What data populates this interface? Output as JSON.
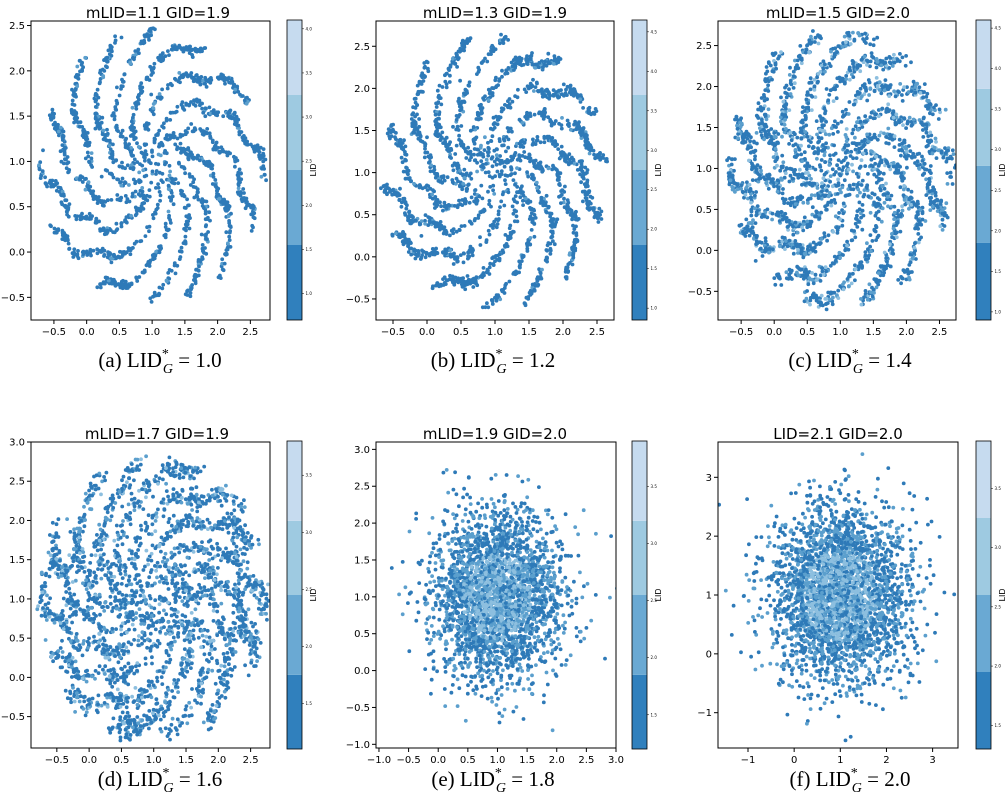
{
  "chart_data": [
    {
      "type": "scatter",
      "title": "mLID=1.1 GID=1.9",
      "caption": {
        "prefix": "(a) LID",
        "sup": "*",
        "sub": "G",
        "rest": " = 1.0"
      },
      "xlim": [
        -0.85,
        2.8
      ],
      "ylim": [
        -0.75,
        2.55
      ],
      "xticks": [
        "-0.5",
        "0.0",
        "0.5",
        "1.0",
        "1.5",
        "2.0",
        "2.5"
      ],
      "yticks": [
        "-0.5",
        "0.0",
        "0.5",
        "1.0",
        "1.5",
        "2.0",
        "2.5"
      ],
      "ytick_values": [
        -0.5,
        0,
        0.5,
        1,
        1.5,
        2,
        2.5
      ],
      "xtick_values": [
        -0.5,
        0,
        0.5,
        1,
        1.5,
        2,
        2.5
      ],
      "pattern": "stripes",
      "point_count": 1700,
      "noise": 0.02,
      "center": [
        1.0,
        0.95
      ],
      "colorbar": {
        "label": "LID",
        "ticks": [
          "1.0",
          "1.5",
          "2.0",
          "2.5",
          "3.0",
          "3.5",
          "4.0"
        ],
        "tick_values": [
          1.0,
          1.5,
          2.0,
          2.5,
          3.0,
          3.5,
          4.0
        ],
        "range": [
          0.7,
          4.1
        ],
        "bounds": [
          0.7,
          1.55,
          2.4,
          3.25,
          4.1
        ]
      }
    },
    {
      "type": "scatter",
      "title": "mLID=1.3 GID=1.9",
      "caption": {
        "prefix": "(b) LID",
        "sup": "*",
        "sub": "G",
        "rest": " = 1.2"
      },
      "xlim": [
        -0.75,
        2.75
      ],
      "ylim": [
        -0.75,
        2.8
      ],
      "xticks": [
        "-0.5",
        "0.0",
        "0.5",
        "1.0",
        "1.5",
        "2.0",
        "2.5"
      ],
      "xtick_values": [
        -0.5,
        0,
        0.5,
        1,
        1.5,
        2,
        2.5
      ],
      "yticks": [
        "-0.5",
        "0.0",
        "0.5",
        "1.0",
        "1.5",
        "2.0",
        "2.5"
      ],
      "ytick_values": [
        -0.5,
        0,
        0.5,
        1,
        1.5,
        2,
        2.5
      ],
      "pattern": "stripes",
      "point_count": 1900,
      "noise": 0.025,
      "center": [
        1.0,
        1.0
      ],
      "colorbar": {
        "label": "LID",
        "ticks": [
          "1.0",
          "1.5",
          "2.0",
          "2.5",
          "3.0",
          "3.5",
          "4.0",
          "4.5"
        ],
        "tick_values": [
          1.0,
          1.5,
          2.0,
          2.5,
          3.0,
          3.5,
          4.0,
          4.5
        ],
        "range": [
          0.85,
          4.65
        ],
        "bounds": [
          0.85,
          1.8,
          2.75,
          3.7,
          4.65
        ]
      }
    },
    {
      "type": "scatter",
      "title": "mLID=1.5 GID=2.0",
      "caption": {
        "prefix": "(c) LID",
        "sup": "*",
        "sub": "G",
        "rest": " = 1.4"
      },
      "xlim": [
        -0.85,
        2.75
      ],
      "ylim": [
        -0.85,
        2.8
      ],
      "xticks": [
        "-0.5",
        "0.0",
        "0.5",
        "1.0",
        "1.5",
        "2.0",
        "2.5"
      ],
      "xtick_values": [
        -0.5,
        0,
        0.5,
        1,
        1.5,
        2,
        2.5
      ],
      "yticks": [
        "-0.5",
        "0.0",
        "0.5",
        "1.0",
        "1.5",
        "2.0",
        "2.5"
      ],
      "ytick_values": [
        -0.5,
        0,
        0.5,
        1,
        1.5,
        2,
        2.5
      ],
      "pattern": "mixed",
      "point_count": 2300,
      "noise": 0.035,
      "center": [
        1.0,
        1.0
      ],
      "colorbar": {
        "label": "LID",
        "ticks": [
          "1.0",
          "1.5",
          "2.0",
          "2.5",
          "3.0",
          "3.5",
          "4.0",
          "4.5"
        ],
        "tick_values": [
          1.0,
          1.5,
          2.0,
          2.5,
          3.0,
          3.5,
          4.0,
          4.5
        ],
        "range": [
          0.9,
          4.6
        ],
        "bounds": [
          0.9,
          1.85,
          2.8,
          3.75,
          4.6
        ]
      }
    },
    {
      "type": "scatter",
      "title": "mLID=1.7 GID=1.9",
      "caption": {
        "prefix": "(d) LID",
        "sup": "*",
        "sub": "G",
        "rest": " = 1.6"
      },
      "xlim": [
        -0.9,
        2.8
      ],
      "ylim": [
        -0.9,
        3.0
      ],
      "xticks": [
        "-0.5",
        "0.0",
        "0.5",
        "1.0",
        "1.5",
        "2.0",
        "2.5"
      ],
      "xtick_values": [
        -0.5,
        0,
        0.5,
        1,
        1.5,
        2,
        2.5
      ],
      "yticks": [
        "-0.5",
        "0.0",
        "0.5",
        "1.0",
        "1.5",
        "2.0",
        "2.5",
        "3.0"
      ],
      "ytick_values": [
        -0.5,
        0,
        0.5,
        1,
        1.5,
        2,
        2.5,
        3
      ],
      "pattern": "mixed",
      "point_count": 2600,
      "noise": 0.05,
      "center": [
        1.0,
        1.0
      ],
      "colorbar": {
        "label": "LID",
        "ticks": [
          "1.5",
          "2.0",
          "2.5",
          "3.0",
          "3.5"
        ],
        "tick_values": [
          1.5,
          2.0,
          2.5,
          3.0,
          3.5
        ],
        "range": [
          1.1,
          3.8
        ],
        "bounds": [
          1.1,
          1.75,
          2.45,
          3.1,
          3.8
        ]
      }
    },
    {
      "type": "scatter",
      "title": "mLID=1.9 GID=2.0",
      "caption": {
        "prefix": "(e) LID",
        "sup": "*",
        "sub": "G",
        "rest": " = 1.8"
      },
      "xlim": [
        -1.05,
        3.0
      ],
      "ylim": [
        -1.05,
        3.1
      ],
      "xticks": [
        "-1.0",
        "-0.5",
        "0.0",
        "0.5",
        "1.0",
        "1.5",
        "2.0",
        "2.5",
        "3.0"
      ],
      "xtick_values": [
        -1,
        -0.5,
        0,
        0.5,
        1,
        1.5,
        2,
        2.5,
        3
      ],
      "yticks": [
        "-1.0",
        "-0.5",
        "0.0",
        "0.5",
        "1.0",
        "1.5",
        "2.0",
        "2.5",
        "3.0"
      ],
      "ytick_values": [
        -1,
        -0.5,
        0,
        0.5,
        1,
        1.5,
        2,
        2.5,
        3
      ],
      "pattern": "blob",
      "point_count": 2800,
      "noise": 0.0,
      "center": [
        1.0,
        1.0
      ],
      "spread": 0.75,
      "colorbar": {
        "label": "LID",
        "ticks": [
          "1.5",
          "2.0",
          "2.5",
          "3.0",
          "3.5"
        ],
        "tick_values": [
          1.5,
          2.0,
          2.5,
          3.0,
          3.5
        ],
        "range": [
          1.2,
          3.9
        ],
        "bounds": [
          1.2,
          1.85,
          2.55,
          3.2,
          3.9
        ]
      }
    },
    {
      "type": "scatter",
      "title": "LID=2.1 GID=2.0",
      "caption": {
        "prefix": "(f) LID",
        "sup": "*",
        "sub": "G",
        "rest": " = 2.0"
      },
      "xlim": [
        -1.65,
        3.55
      ],
      "ylim": [
        -1.6,
        3.6
      ],
      "xticks": [
        "-1",
        "0",
        "1",
        "2",
        "3"
      ],
      "xtick_values": [
        -1,
        0,
        1,
        2,
        3
      ],
      "yticks": [
        "-1",
        "0",
        "1",
        "2",
        "3"
      ],
      "ytick_values": [
        -1,
        0,
        1,
        2,
        3
      ],
      "pattern": "blob",
      "point_count": 3000,
      "noise": 0.0,
      "center": [
        1.0,
        1.0
      ],
      "spread": 1.0,
      "colorbar": {
        "label": "LID",
        "ticks": [
          "1.5",
          "2.0",
          "2.5",
          "3.0",
          "3.5"
        ],
        "tick_values": [
          1.5,
          2.0,
          2.5,
          3.0,
          3.5
        ],
        "range": [
          1.3,
          3.9
        ],
        "bounds": [
          1.3,
          1.95,
          2.6,
          3.25,
          3.9
        ]
      }
    }
  ],
  "colors": {
    "point_dark": "#2e7ab8",
    "point_mid": "#5b9fcd",
    "point_light": "#8dbfdf",
    "cmap": [
      "#3080bd",
      "#6aa9d3",
      "#9ecae1",
      "#c6dbef"
    ]
  }
}
